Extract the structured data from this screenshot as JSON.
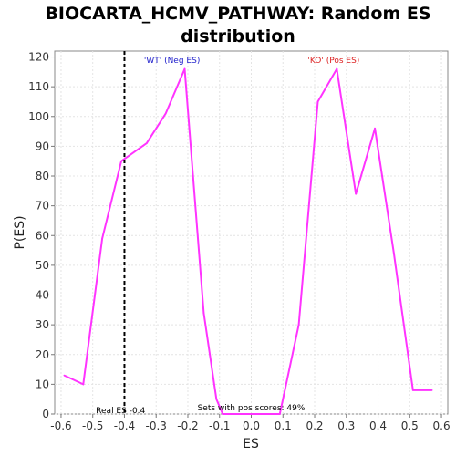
{
  "chart_data": {
    "type": "line",
    "title_line1": "BIOCARTA_HCMV_PATHWAY: Random ES",
    "title_line2": "distribution",
    "xlabel": "ES",
    "ylabel": "P(ES)",
    "xlim": [
      -0.62,
      0.62
    ],
    "ylim": [
      0,
      122
    ],
    "xticks": [
      -0.6,
      -0.5,
      -0.4,
      -0.3,
      -0.2,
      -0.1,
      0.0,
      0.1,
      0.2,
      0.3,
      0.4,
      0.5,
      0.6
    ],
    "xtick_labels": [
      "-0.6",
      "-0.5",
      "-0.4",
      "-0.3",
      "-0.2",
      "-0.1",
      "0.0",
      "0.1",
      "0.2",
      "0.3",
      "0.4",
      "0.5",
      "0.6"
    ],
    "yticks": [
      0,
      10,
      20,
      30,
      40,
      50,
      60,
      70,
      80,
      90,
      100,
      110,
      120
    ],
    "grid": true,
    "series": [
      {
        "color": "#ff33ff",
        "x": [
          -0.59,
          -0.53,
          -0.47,
          -0.41,
          -0.33,
          -0.27,
          -0.21,
          -0.15,
          -0.11,
          -0.09,
          0.09,
          0.15,
          0.21,
          0.27,
          0.33,
          0.39,
          0.45,
          0.51,
          0.57
        ],
        "y": [
          13,
          10,
          59,
          85,
          91,
          101,
          116,
          34,
          5,
          0,
          0,
          30,
          105,
          116,
          74,
          96,
          54,
          8,
          8
        ]
      }
    ],
    "real_es": -0.4,
    "annotations": {
      "wt": "'WT' (Neg ES)",
      "ko": "'KO' (Pos ES)",
      "real_es": "Real ES -0.4",
      "pos_scores": "Sets with pos scores: 49%"
    },
    "colors": {
      "wt": "#2222cc",
      "ko": "#dd2222",
      "line": "#ff33ff"
    }
  }
}
